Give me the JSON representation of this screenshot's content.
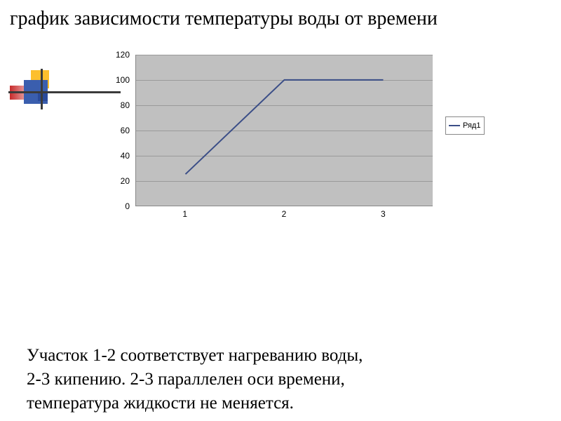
{
  "title": "график зависимости температуры воды от времени",
  "logo": {
    "yellow": "#fdbf2d",
    "blue1": "#3a5eae",
    "blue2": "#2a4a9a",
    "red": "#c72b2b",
    "line": "#3b3b3b"
  },
  "chart": {
    "type": "line",
    "y_ticks": [
      0,
      20,
      40,
      60,
      80,
      100,
      120
    ],
    "ylim": [
      0,
      120
    ],
    "x_categories": [
      "1",
      "2",
      "3"
    ],
    "series": [
      {
        "label": "Ряд1",
        "color": "#3b4e87",
        "line_width": 2,
        "values": [
          25,
          100,
          100
        ]
      }
    ],
    "plot_bg": "#c0c0c0",
    "grid_color": "#9a9a9a",
    "axis_color": "#888888",
    "label_font_family": "Arial",
    "label_fontsize": 12,
    "legend_border": "#888888"
  },
  "caption_lines": [
    "Участок 1-2 соответствует нагреванию воды,",
    "2-3 кипению. 2-3 параллелен оси времени,",
    "температура жидкости не меняется."
  ]
}
